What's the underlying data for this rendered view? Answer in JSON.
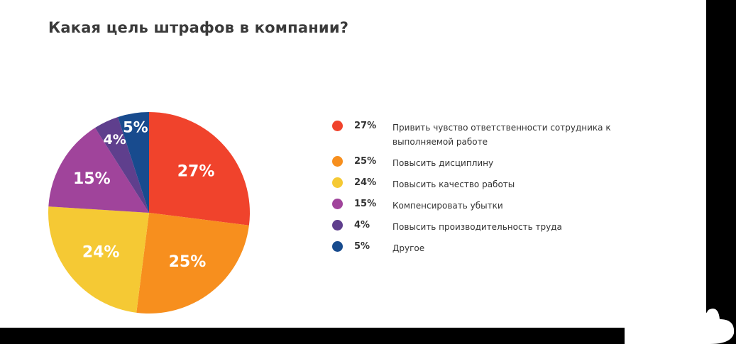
{
  "chart_data": {
    "type": "pie",
    "title": "Какая цель штрафов в компании?",
    "start_angle_deg": 0,
    "direction": "clockwise",
    "slices": [
      {
        "value": 27,
        "label": "27%",
        "text": "Привить чувство ответственности сотрудника к выполняемой работе",
        "color": "#f0432c"
      },
      {
        "value": 25,
        "label": "25%",
        "text": "Повысить дисциплину",
        "color": "#f78f1e"
      },
      {
        "value": 24,
        "label": "24%",
        "text": "Повысить качество работы",
        "color": "#f5c934"
      },
      {
        "value": 15,
        "label": "15%",
        "text": "Компенсировать убытки",
        "color": "#a0449b"
      },
      {
        "value": 4,
        "label": "4%",
        "text": "Повысить производительность труда",
        "color": "#5f3f8d"
      },
      {
        "value": 5,
        "label": "5%",
        "text": "Другое",
        "color": "#184b8e"
      }
    ],
    "legend_position": "right"
  }
}
